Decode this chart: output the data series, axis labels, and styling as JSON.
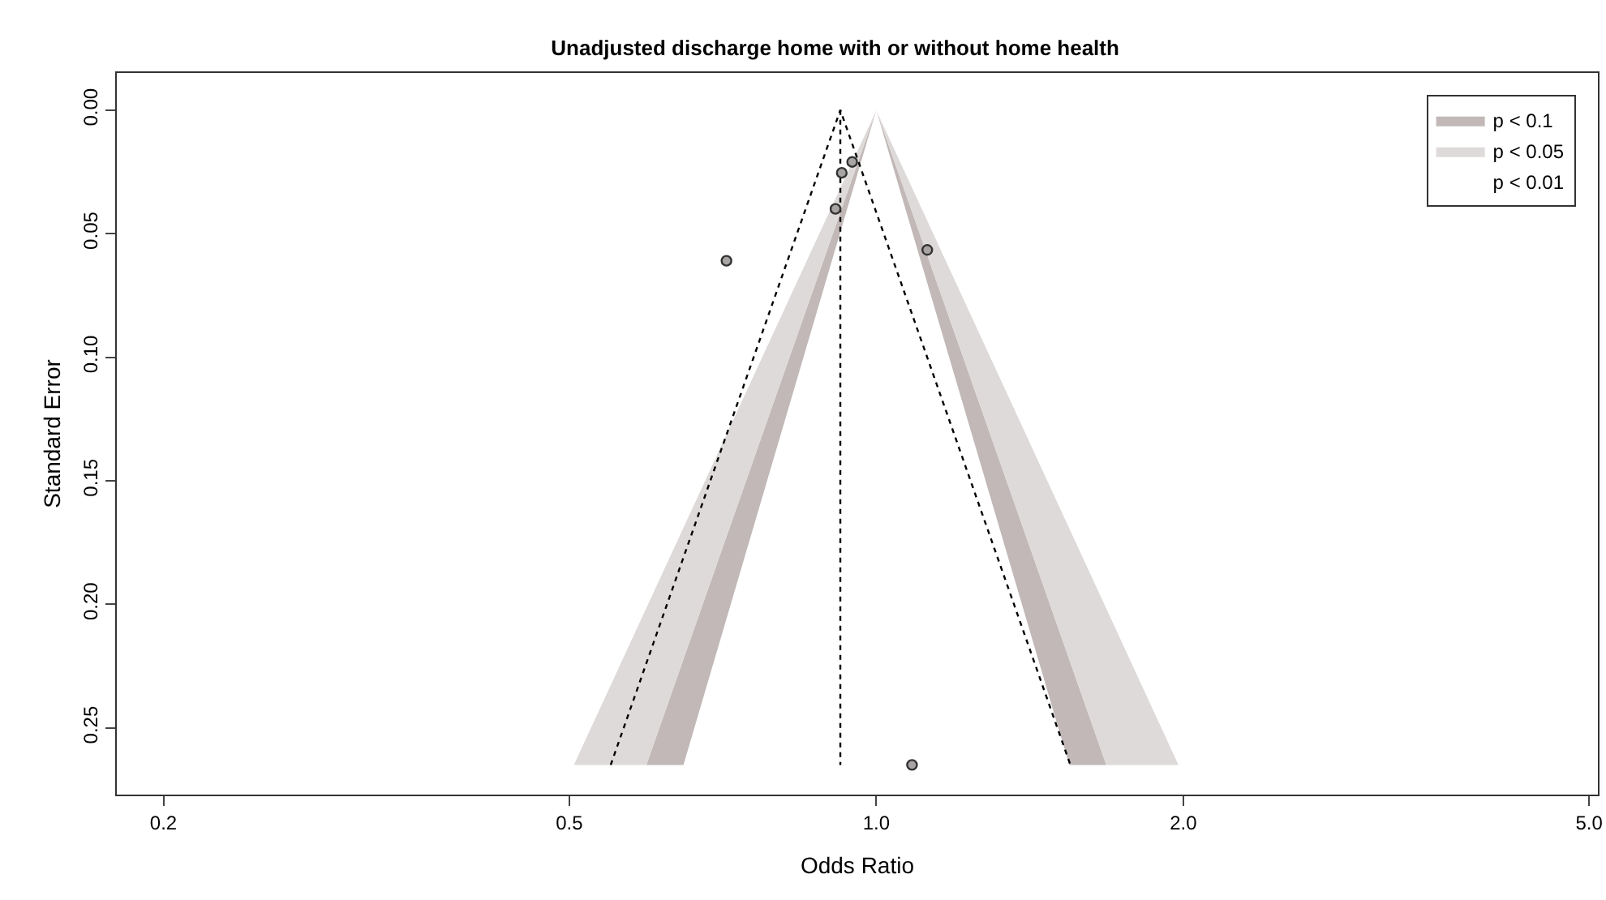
{
  "chart_data": {
    "type": "scatter",
    "title": "Unadjusted discharge home with or without home health",
    "xlabel": "Odds Ratio",
    "ylabel": "Standard Error",
    "log": "x",
    "xlim": [
      0.18,
      5.1
    ],
    "xticks": [
      0.2,
      0.5,
      {
        "value": 1,
        "label": "1.0"
      },
      {
        "value": 2,
        "label": "2.0"
      },
      {
        "value": 5,
        "label": "5.0"
      }
    ],
    "ylim": [
      0.277,
      -0.015
    ],
    "yticks": [
      {
        "value": 0,
        "label": "0.00"
      },
      {
        "value": 0.05,
        "label": "0.05"
      },
      {
        "value": 0.1,
        "label": "0.10"
      },
      {
        "value": 0.15,
        "label": "0.15"
      },
      {
        "value": 0.2,
        "label": "0.20"
      },
      {
        "value": 0.25,
        "label": "0.25"
      }
    ],
    "grid": false,
    "legend": "top right",
    "series": [
      {
        "type": "area",
        "name": "p < 0.1",
        "color": "#c2b8b8",
        "x": [
          1,
          0.647,
          0.595,
          1,
          null,
          1,
          1.546,
          1.681,
          1
        ],
        "values": [
          0,
          0.265,
          0.265,
          0,
          null,
          0,
          0.265,
          0.265,
          0
        ]
      },
      {
        "type": "area",
        "name": "p < 0.05",
        "color": "#deDad9",
        "x": [
          1,
          0.595,
          0.505,
          1,
          null,
          1,
          1.681,
          1.979,
          1
        ],
        "values": [
          0,
          0.265,
          0.265,
          0,
          null,
          0,
          0.265,
          0.265,
          0
        ]
      },
      {
        "type": "area",
        "name": "p < 0.01",
        "color": "#ffffff",
        "x": [
          1,
          0.505,
          0.18,
          0.18,
          1,
          null,
          1,
          1.979,
          5.1,
          5.1,
          1
        ],
        "values": [
          0,
          0.265,
          0.265,
          0,
          0,
          null,
          0,
          0.265,
          0.265,
          0,
          0
        ]
      },
      {
        "type": "line",
        "color": "#000000",
        "line_style": "dotted",
        "marker": "none",
        "x": [
          0.549,
          0.922,
          1.55
        ],
        "values": [
          0.265,
          0,
          0.265
        ]
      },
      {
        "type": "line",
        "color": "#000000",
        "line_style": "dotted",
        "marker": "none",
        "x": [
          0.922,
          0.922
        ],
        "values": [
          0,
          0.265
        ]
      },
      {
        "marker": "circle",
        "color": "#a8a4a4",
        "x": [
          0.713,
          0.925,
          0.947,
          0.912,
          1.122,
          1.084
        ],
        "values": [
          0.061,
          0.0254,
          0.021,
          0.04,
          0.0566,
          0.265
        ]
      }
    ]
  }
}
